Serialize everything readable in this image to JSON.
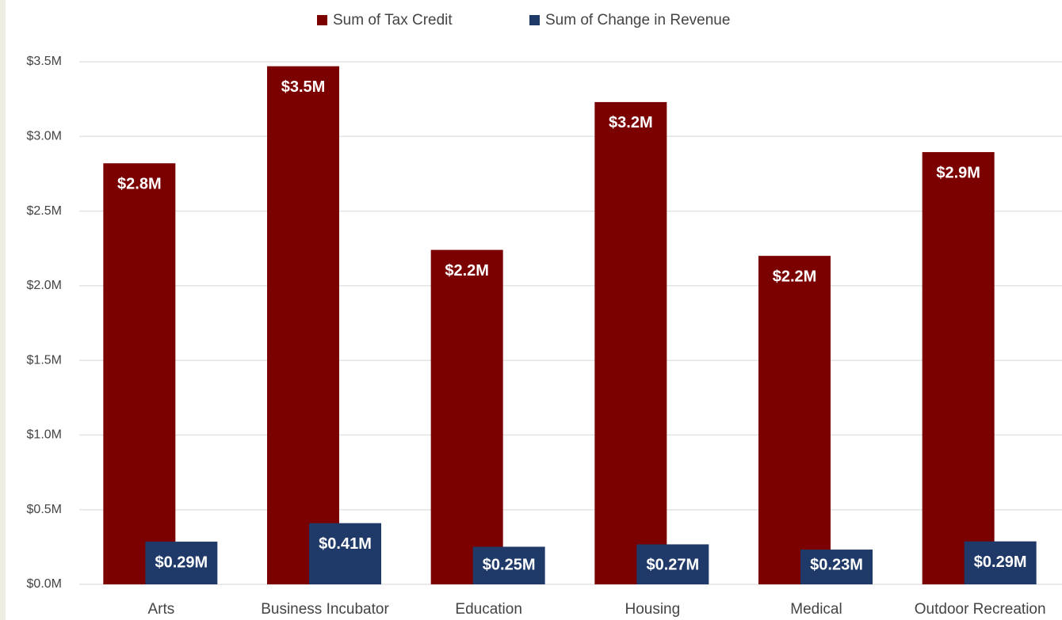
{
  "chart_data": {
    "type": "bar",
    "categories": [
      "Arts",
      "Business Incubator",
      "Education",
      "Housing",
      "Medical",
      "Outdoor Recreation"
    ],
    "series": [
      {
        "name": "Sum of Tax Credit",
        "color": "#7b0000",
        "values": [
          2820000,
          3470000,
          2240000,
          3230000,
          2200000,
          2895000
        ],
        "value_labels": [
          "$2.8M",
          "$3.5M",
          "$2.2M",
          "$3.2M",
          "$2.2M",
          "$2.9M"
        ]
      },
      {
        "name": "Sum of Change in Revenue",
        "color": "#1f3a68",
        "values": [
          286000,
          410000,
          252000,
          268000,
          233000,
          288000
        ],
        "value_labels": [
          "$0.29M",
          "$0.41M",
          "$0.25M",
          "$0.27M",
          "$0.23M",
          "$0.29M"
        ]
      }
    ],
    "ylim": [
      0,
      3500000
    ],
    "yticks": [
      {
        "value": 0,
        "label": "$0.0M"
      },
      {
        "value": 500000,
        "label": "$0.5M"
      },
      {
        "value": 1000000,
        "label": "$1.0M"
      },
      {
        "value": 1500000,
        "label": "$1.5M"
      },
      {
        "value": 2000000,
        "label": "$2.0M"
      },
      {
        "value": 2500000,
        "label": "$2.5M"
      },
      {
        "value": 3000000,
        "label": "$3.0M"
      },
      {
        "value": 3500000,
        "label": "$3.5M"
      }
    ],
    "grid": true,
    "legend": "top"
  }
}
